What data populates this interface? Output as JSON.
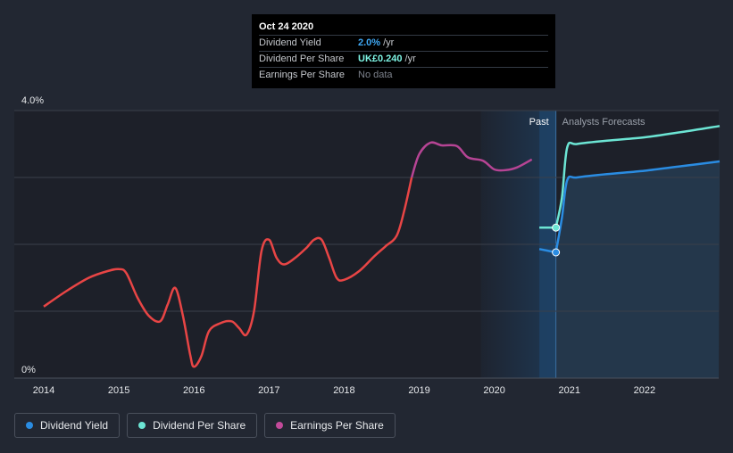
{
  "tooltip": {
    "date": "Oct 24 2020",
    "rows": [
      {
        "label": "Dividend Yield",
        "value": "2.0%",
        "unit": "/yr",
        "color": "#3fa9f5"
      },
      {
        "label": "Dividend Per Share",
        "value": "UK£0.240",
        "unit": "/yr",
        "color": "#7ef4e4"
      },
      {
        "label": "Earnings Per Share",
        "value": "No data",
        "unit": "",
        "color": "#7d828c"
      }
    ]
  },
  "legend": [
    {
      "label": "Dividend Yield",
      "color": "#2a8ce2"
    },
    {
      "label": "Dividend Per Share",
      "color": "#6ce5d4"
    },
    {
      "label": "Earnings Per Share",
      "color": "#c24a9a"
    }
  ],
  "chart_data": {
    "type": "line",
    "y_tick_labels": [
      "4.0%",
      "0%"
    ],
    "ylim": [
      0,
      4.0
    ],
    "xlim": [
      2013.8,
      2023.0
    ],
    "x_tick_labels": [
      "2014",
      "2015",
      "2016",
      "2017",
      "2018",
      "2019",
      "2020",
      "2021",
      "2022"
    ],
    "region_labels": {
      "past": "Past",
      "forecast": "Analysts Forecasts"
    },
    "past_boundary": 2020.82,
    "grid": true,
    "legend_position": "bottom-left",
    "series": [
      {
        "name": "Dividend Yield",
        "color": "#e84545",
        "points": [
          [
            2014.0,
            1.07
          ],
          [
            2014.3,
            1.3
          ],
          [
            2014.6,
            1.5
          ],
          [
            2014.85,
            1.6
          ],
          [
            2015.0,
            1.63
          ],
          [
            2015.1,
            1.57
          ],
          [
            2015.25,
            1.2
          ],
          [
            2015.4,
            0.93
          ],
          [
            2015.55,
            0.85
          ],
          [
            2015.65,
            1.1
          ],
          [
            2015.75,
            1.35
          ],
          [
            2015.85,
            0.95
          ],
          [
            2015.95,
            0.35
          ],
          [
            2016.0,
            0.17
          ],
          [
            2016.1,
            0.33
          ],
          [
            2016.2,
            0.7
          ],
          [
            2016.35,
            0.82
          ],
          [
            2016.5,
            0.85
          ],
          [
            2016.6,
            0.75
          ],
          [
            2016.7,
            0.65
          ],
          [
            2016.8,
            1.0
          ],
          [
            2016.9,
            1.9
          ],
          [
            2017.0,
            2.07
          ],
          [
            2017.1,
            1.8
          ],
          [
            2017.2,
            1.7
          ],
          [
            2017.35,
            1.8
          ],
          [
            2017.5,
            1.95
          ],
          [
            2017.6,
            2.07
          ],
          [
            2017.7,
            2.07
          ],
          [
            2017.8,
            1.8
          ],
          [
            2017.9,
            1.5
          ],
          [
            2018.0,
            1.47
          ],
          [
            2018.2,
            1.6
          ],
          [
            2018.4,
            1.82
          ],
          [
            2018.55,
            1.97
          ],
          [
            2018.7,
            2.13
          ],
          [
            2018.8,
            2.5
          ],
          [
            2018.9,
            3.0
          ]
        ]
      },
      {
        "name": "Earnings Per Share",
        "color": "#b64494",
        "points": [
          [
            2018.9,
            3.0
          ],
          [
            2019.0,
            3.35
          ],
          [
            2019.15,
            3.52
          ],
          [
            2019.3,
            3.48
          ],
          [
            2019.5,
            3.47
          ],
          [
            2019.65,
            3.3
          ],
          [
            2019.85,
            3.25
          ],
          [
            2020.0,
            3.12
          ],
          [
            2020.15,
            3.11
          ],
          [
            2020.3,
            3.15
          ],
          [
            2020.5,
            3.27
          ]
        ]
      },
      {
        "name": "Dividend Per Share",
        "color": "#6ce5d4",
        "past_points": [
          [
            2020.6,
            2.25
          ],
          [
            2020.82,
            2.25
          ]
        ],
        "forecast_points": [
          [
            2020.82,
            2.25
          ],
          [
            2020.9,
            2.7
          ],
          [
            2020.97,
            3.45
          ],
          [
            2021.1,
            3.5
          ],
          [
            2021.5,
            3.55
          ],
          [
            2022.0,
            3.6
          ],
          [
            2022.5,
            3.68
          ],
          [
            2023.0,
            3.77
          ]
        ]
      },
      {
        "name": "Dividend Yield (forecast)",
        "color": "#2a8ce2",
        "past_points": [
          [
            2020.6,
            1.93
          ],
          [
            2020.82,
            1.88
          ]
        ],
        "forecast_points": [
          [
            2020.82,
            1.88
          ],
          [
            2020.9,
            2.4
          ],
          [
            2020.97,
            2.96
          ],
          [
            2021.1,
            3.0
          ],
          [
            2021.5,
            3.05
          ],
          [
            2022.0,
            3.1
          ],
          [
            2022.5,
            3.17
          ],
          [
            2023.0,
            3.24
          ]
        ]
      }
    ]
  }
}
